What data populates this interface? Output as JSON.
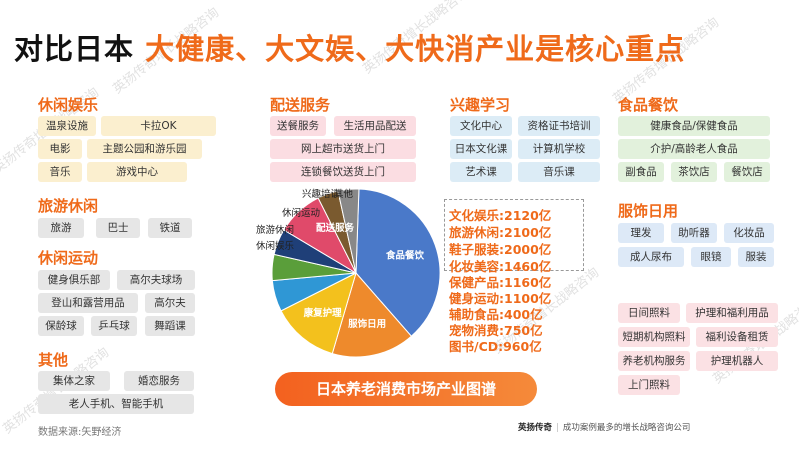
{
  "title": {
    "part1": "对比日本",
    "part2": "大健康、大文娱、大快消产业是核心重点"
  },
  "leisure_ent": {
    "heading": "休闲娱乐",
    "items": [
      "温泉设施",
      "卡拉OK",
      "电影",
      "主题公园和游乐园",
      "音乐",
      "游戏中心"
    ]
  },
  "tourism": {
    "heading": "旅游休闲",
    "items": [
      "旅游",
      "巴士",
      "铁道"
    ]
  },
  "leisure_sport": {
    "heading": "休闲运动",
    "items": [
      "健身俱乐部",
      "高尔夫球场",
      "登山和露营用品",
      "高尔夫",
      "保龄球",
      "乒乓球",
      "舞蹈课"
    ]
  },
  "other": {
    "heading": "其他",
    "items": [
      "集体之家",
      "婚恋服务",
      "老人手机、智能手机"
    ]
  },
  "delivery": {
    "heading": "配送服务",
    "items": [
      "送餐服务",
      "生活用品配送",
      "网上超市送货上门",
      "连锁餐饮送货上门"
    ]
  },
  "interest": {
    "heading": "兴趣学习",
    "items": [
      "文化中心",
      "资格证书培训",
      "日本文化课",
      "计算机学校",
      "艺术课",
      "音乐课"
    ]
  },
  "food": {
    "heading": "食品餐饮",
    "items": [
      "健康食品/保健食品",
      "介护/高龄老人食品",
      "副食品",
      "茶饮店",
      "餐饮店"
    ]
  },
  "clothing": {
    "heading": "服饰日用",
    "items": [
      "理发",
      "助听器",
      "化妆品",
      "成人尿布",
      "眼镜",
      "服装"
    ]
  },
  "care": {
    "items": [
      "日间照料",
      "护理和福利用品",
      "短期机构照料",
      "福利设备租赁",
      "养老机构服务",
      "护理机器人",
      "上门照料"
    ]
  },
  "stats": [
    {
      "label": "文化娱乐",
      "value": "2120亿"
    },
    {
      "label": "旅游休闲",
      "value": "2100亿"
    },
    {
      "label": "鞋子服装",
      "value": "2000亿"
    },
    {
      "label": "化妆美容",
      "value": "1460亿"
    },
    {
      "label": "保健产品",
      "value": "1160亿"
    },
    {
      "label": "健身运动",
      "value": "1100亿"
    },
    {
      "label": "辅助食品",
      "value": "400亿"
    },
    {
      "label": "宠物消费",
      "value": "750亿"
    },
    {
      "label": "图书/CD",
      "value": "960亿"
    }
  ],
  "pie": {
    "slices": [
      {
        "label": "食品餐饮",
        "value": 38,
        "color": "#4a79c9"
      },
      {
        "label": "服饰日用",
        "value": 16,
        "color": "#ee8a2c"
      },
      {
        "label": "康复护理",
        "value": 13,
        "color": "#f3c11d"
      },
      {
        "label": "休闲娱乐",
        "value": 6,
        "color": "#2f97d5"
      },
      {
        "label": "旅游休闲",
        "value": 5,
        "color": "#5a9e3a"
      },
      {
        "label": "休闲运动",
        "value": 5,
        "color": "#1f3f78"
      },
      {
        "label": "配送服务",
        "value": 9,
        "color": "#e04a6a"
      },
      {
        "label": "兴趣培训",
        "value": 4,
        "color": "#7a5a2f"
      },
      {
        "label": "其他",
        "value": 4,
        "color": "#888888"
      }
    ]
  },
  "banner": "日本养老消费市场产业图谱",
  "source": "数据来源:矢野经济",
  "footer": {
    "brand": "英扬传奇",
    "slogan": "成功案例最多的增长战略咨询公司"
  },
  "watermark": "英扬传奇增长战略咨询"
}
